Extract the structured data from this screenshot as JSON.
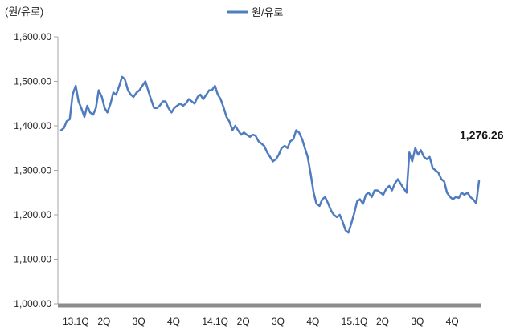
{
  "chart_data": {
    "type": "line",
    "unit_label": "(원/유로)",
    "legend": "원/유로",
    "legend_position": "top-center",
    "series_color": "#4f7cbf",
    "grid": false,
    "ylim": [
      1000,
      1600
    ],
    "yticks": [
      1000,
      1100,
      1200,
      1300,
      1400,
      1500,
      1600
    ],
    "ytick_labels": [
      "1,000.00",
      "1,100.00",
      "1,200.00",
      "1,300.00",
      "1,400.00",
      "1,500.00",
      "1,600.00"
    ],
    "xlim": [
      0,
      12
    ],
    "xticks": [
      0,
      1,
      2,
      3,
      4,
      5,
      6,
      7,
      8,
      9,
      10,
      11
    ],
    "xtick_labels": [
      "13.1Q",
      "2Q",
      "3Q",
      "4Q",
      "14.1Q",
      "2Q",
      "3Q",
      "4Q",
      "15.1Q",
      "2Q",
      "3Q",
      "4Q"
    ],
    "annotation": {
      "text": "1,276.26",
      "x": 12.0,
      "y": 1276.26
    },
    "series": [
      {
        "name": "원/유로",
        "x": [
          0.0,
          0.08,
          0.16,
          0.25,
          0.33,
          0.42,
          0.5,
          0.58,
          0.67,
          0.75,
          0.83,
          0.92,
          1.0,
          1.08,
          1.17,
          1.25,
          1.33,
          1.42,
          1.5,
          1.58,
          1.67,
          1.75,
          1.83,
          1.92,
          2.0,
          2.08,
          2.17,
          2.25,
          2.33,
          2.42,
          2.5,
          2.58,
          2.67,
          2.75,
          2.83,
          2.92,
          3.0,
          3.08,
          3.17,
          3.25,
          3.33,
          3.42,
          3.5,
          3.58,
          3.67,
          3.75,
          3.83,
          3.92,
          4.0,
          4.08,
          4.17,
          4.25,
          4.33,
          4.42,
          4.5,
          4.58,
          4.67,
          4.75,
          4.83,
          4.92,
          5.0,
          5.08,
          5.17,
          5.25,
          5.33,
          5.42,
          5.5,
          5.58,
          5.67,
          5.75,
          5.83,
          5.92,
          6.0,
          6.08,
          6.17,
          6.25,
          6.33,
          6.42,
          6.5,
          6.58,
          6.67,
          6.75,
          6.83,
          6.92,
          7.0,
          7.08,
          7.17,
          7.25,
          7.33,
          7.42,
          7.5,
          7.58,
          7.67,
          7.75,
          7.83,
          7.92,
          8.0,
          8.08,
          8.17,
          8.25,
          8.33,
          8.42,
          8.5,
          8.58,
          8.67,
          8.75,
          8.83,
          8.92,
          9.0,
          9.08,
          9.17,
          9.25,
          9.33,
          9.42,
          9.5,
          9.58,
          9.67,
          9.75,
          9.83,
          9.92,
          10.0,
          10.08,
          10.17,
          10.25,
          10.33,
          10.42,
          10.5,
          10.58,
          10.67,
          10.75,
          10.83,
          10.92,
          11.0,
          11.08,
          11.17,
          11.25,
          11.33,
          11.42,
          11.5,
          11.58,
          11.67,
          11.75,
          11.83,
          11.92,
          12.0
        ],
        "values": [
          1390,
          1395,
          1410,
          1415,
          1470,
          1490,
          1455,
          1440,
          1420,
          1445,
          1430,
          1425,
          1440,
          1480,
          1465,
          1440,
          1430,
          1450,
          1475,
          1470,
          1490,
          1510,
          1505,
          1480,
          1470,
          1465,
          1475,
          1480,
          1490,
          1500,
          1480,
          1460,
          1440,
          1440,
          1445,
          1455,
          1455,
          1440,
          1430,
          1440,
          1445,
          1450,
          1445,
          1450,
          1460,
          1455,
          1450,
          1465,
          1470,
          1460,
          1470,
          1480,
          1480,
          1490,
          1470,
          1460,
          1440,
          1420,
          1410,
          1390,
          1400,
          1390,
          1380,
          1385,
          1380,
          1375,
          1380,
          1378,
          1365,
          1360,
          1355,
          1340,
          1330,
          1320,
          1325,
          1335,
          1350,
          1355,
          1350,
          1365,
          1370,
          1390,
          1385,
          1370,
          1350,
          1330,
          1290,
          1250,
          1225,
          1220,
          1235,
          1240,
          1225,
          1210,
          1200,
          1195,
          1200,
          1185,
          1165,
          1160,
          1180,
          1205,
          1230,
          1235,
          1225,
          1245,
          1250,
          1240,
          1255,
          1255,
          1250,
          1245,
          1258,
          1265,
          1255,
          1270,
          1280,
          1270,
          1260,
          1250,
          1340,
          1320,
          1350,
          1335,
          1345,
          1330,
          1325,
          1330,
          1305,
          1300,
          1295,
          1280,
          1275,
          1250,
          1240,
          1235,
          1240,
          1238,
          1250,
          1245,
          1250,
          1240,
          1235,
          1226,
          1276.26
        ]
      }
    ]
  }
}
